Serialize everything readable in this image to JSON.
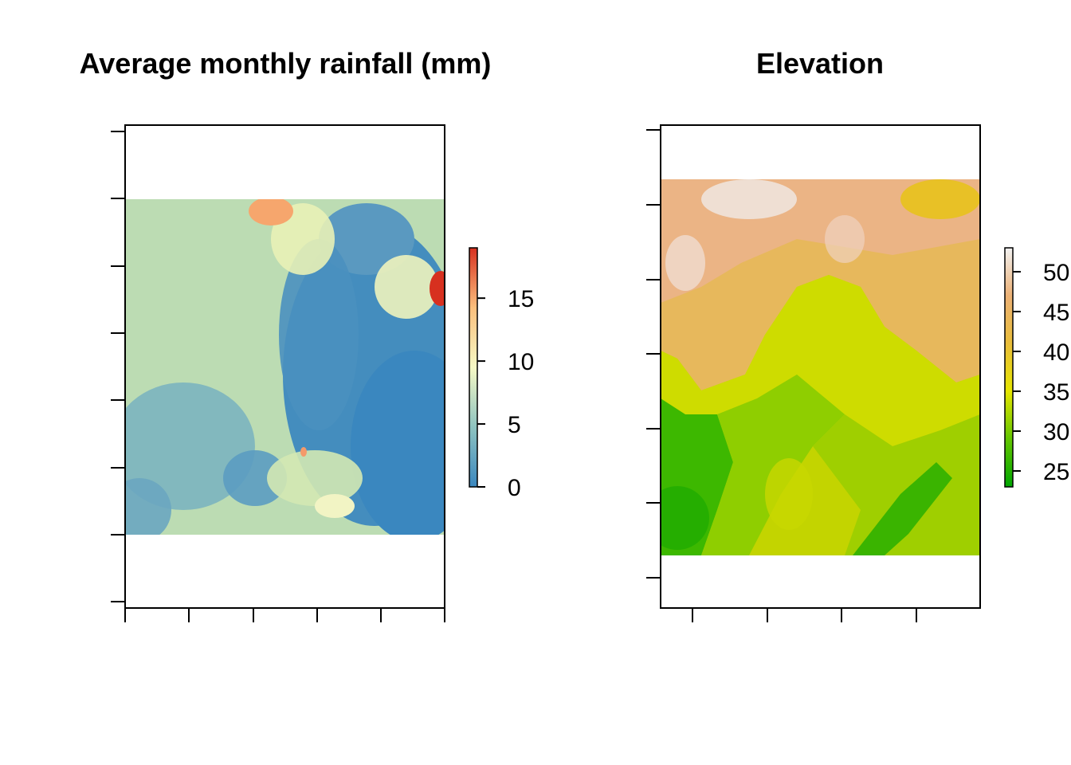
{
  "chart_data": [
    {
      "type": "heatmap",
      "title": "Average monthly rainfall (mm)",
      "xlabel": "",
      "ylabel": "",
      "legend": {
        "placement": "right",
        "range": [
          0,
          19
        ],
        "ticks": [
          0,
          5,
          10,
          15
        ],
        "tick_labels": [
          "0",
          "5",
          "10",
          "15"
        ],
        "colors": [
          "#3a87bf",
          "#8ec3c0",
          "#f6f9c5",
          "#fbbf7d",
          "#d7301f"
        ]
      },
      "grid": false
    },
    {
      "type": "heatmap",
      "title": "Elevation",
      "xlabel": "",
      "ylabel": "",
      "legend": {
        "placement": "right",
        "range": [
          23,
          53
        ],
        "ticks": [
          25,
          30,
          35,
          40,
          45,
          50
        ],
        "tick_labels": [
          "25",
          "30",
          "35",
          "40",
          "45",
          "50"
        ],
        "colors": [
          "#00a600",
          "#63c600",
          "#e6e600",
          "#e9bd3a",
          "#ecb176",
          "#f2f2f2"
        ]
      },
      "grid": false
    }
  ]
}
